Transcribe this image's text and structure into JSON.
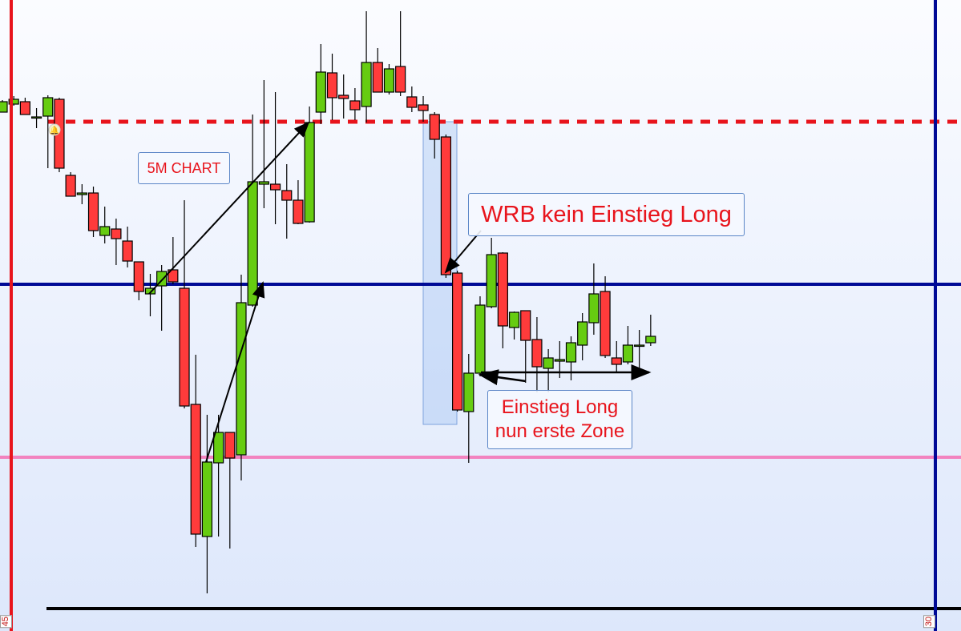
{
  "chart_data": {
    "type": "candlestick",
    "title": "",
    "candles": [
      [
        660,
        675,
        660,
        673
      ],
      [
        670,
        680,
        668,
        676
      ],
      [
        673,
        678,
        657,
        657
      ],
      [
        654,
        665,
        640,
        654
      ],
      [
        655,
        681,
        590,
        678
      ],
      [
        676,
        678,
        585,
        590
      ],
      [
        581,
        585,
        555,
        555
      ],
      [
        557,
        570,
        545,
        559
      ],
      [
        559,
        567,
        504,
        512
      ],
      [
        506,
        542,
        496,
        517
      ],
      [
        514,
        527,
        469,
        502
      ],
      [
        499,
        517,
        466,
        474
      ],
      [
        473,
        473,
        425,
        436
      ],
      [
        433,
        458,
        405,
        440
      ],
      [
        443,
        469,
        387,
        461
      ],
      [
        463,
        504,
        445,
        448
      ],
      [
        440,
        550,
        290,
        293
      ],
      [
        295,
        357,
        117,
        133
      ],
      [
        130,
        282,
        59,
        223
      ],
      [
        222,
        282,
        130,
        260
      ],
      [
        260,
        260,
        115,
        228
      ],
      [
        232,
        457,
        200,
        422
      ],
      [
        419,
        657,
        417,
        573
      ],
      [
        570,
        700,
        540,
        573
      ],
      [
        570,
        685,
        520,
        563
      ],
      [
        562,
        595,
        502,
        550
      ],
      [
        550,
        575,
        520,
        521
      ],
      [
        523,
        667,
        522,
        647
      ],
      [
        660,
        745,
        645,
        710
      ],
      [
        709,
        733,
        650,
        678
      ],
      [
        681,
        707,
        652,
        677
      ],
      [
        674,
        690,
        650,
        663
      ],
      [
        667,
        786,
        647,
        722
      ],
      [
        722,
        740,
        685,
        685
      ],
      [
        685,
        720,
        682,
        714
      ],
      [
        717,
        786,
        680,
        685
      ],
      [
        679,
        692,
        660,
        666
      ],
      [
        669,
        680,
        648,
        662
      ],
      [
        657,
        660,
        602,
        626
      ],
      [
        629,
        632,
        453,
        457
      ],
      [
        459,
        462,
        286,
        288
      ],
      [
        286,
        358,
        222,
        334
      ],
      [
        334,
        430,
        330,
        419
      ],
      [
        417,
        503,
        415,
        482
      ],
      [
        484,
        485,
        365,
        393
      ],
      [
        391,
        411,
        376,
        410
      ],
      [
        412,
        412,
        322,
        375
      ],
      [
        376,
        404,
        310,
        342
      ],
      [
        340,
        364,
        310,
        353
      ],
      [
        349,
        374,
        328,
        351
      ],
      [
        348,
        380,
        325,
        372
      ],
      [
        369,
        409,
        350,
        398
      ],
      [
        397,
        471,
        382,
        433
      ],
      [
        436,
        455,
        353,
        356
      ],
      [
        353,
        374,
        335,
        345
      ],
      [
        348,
        393,
        345,
        369
      ],
      [
        369,
        388,
        335,
        369
      ],
      [
        372,
        407,
        368,
        380
      ]
    ],
    "ohlc_order": [
      "open",
      "high",
      "low",
      "close"
    ],
    "levels": [
      {
        "value": 648,
        "color": "#e8141c",
        "style": "dotted"
      },
      {
        "value": 445,
        "color": "#000a96",
        "style": "solid"
      },
      {
        "value": 229,
        "color": "#f283bf",
        "style": "solid"
      },
      {
        "value": 40,
        "color": "#000000",
        "style": "solid"
      }
    ],
    "ylim": [
      12,
      800
    ],
    "up_color": "#66cc11",
    "down_color": "#ff3b3b",
    "session_lines": [
      {
        "label": "45",
        "color": "#e8141c"
      },
      {
        "label": "30",
        "color": "#000a96"
      }
    ]
  },
  "annotations": {
    "timeframe": "5M CHART",
    "wrb": "WRB kein Einstieg Long",
    "entry_line1": "Einstieg Long",
    "entry_line2": "nun erste Zone"
  }
}
